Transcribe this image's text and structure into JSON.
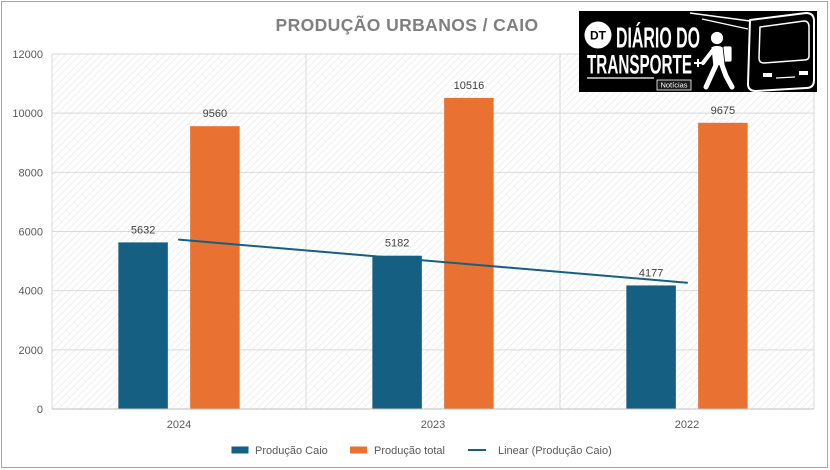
{
  "chart_data": {
    "type": "bar",
    "title": "PRODUÇÃO URBANOS / CAIO",
    "categories": [
      "2024",
      "2023",
      "2022"
    ],
    "series": [
      {
        "name": "Produção Caio",
        "values": [
          5632,
          5182,
          4177
        ],
        "color": "#156082",
        "trendline": {
          "label": "Linear (Produção Caio)",
          "type": "linear",
          "color": "#156082"
        }
      },
      {
        "name": "Produção total",
        "values": [
          9560,
          10516,
          9675
        ],
        "color": "#E97132"
      }
    ],
    "ylim": [
      0,
      12000
    ],
    "yticks": [
      0,
      2000,
      4000,
      6000,
      8000,
      10000,
      12000
    ],
    "data_labels": true,
    "grid": true,
    "legend": "bottom"
  },
  "logo": {
    "mark": "DT",
    "line1": "DIÁRIO DO",
    "line2": "TRANSPORTE",
    "tag": "Notícias",
    "background": "#000000"
  }
}
